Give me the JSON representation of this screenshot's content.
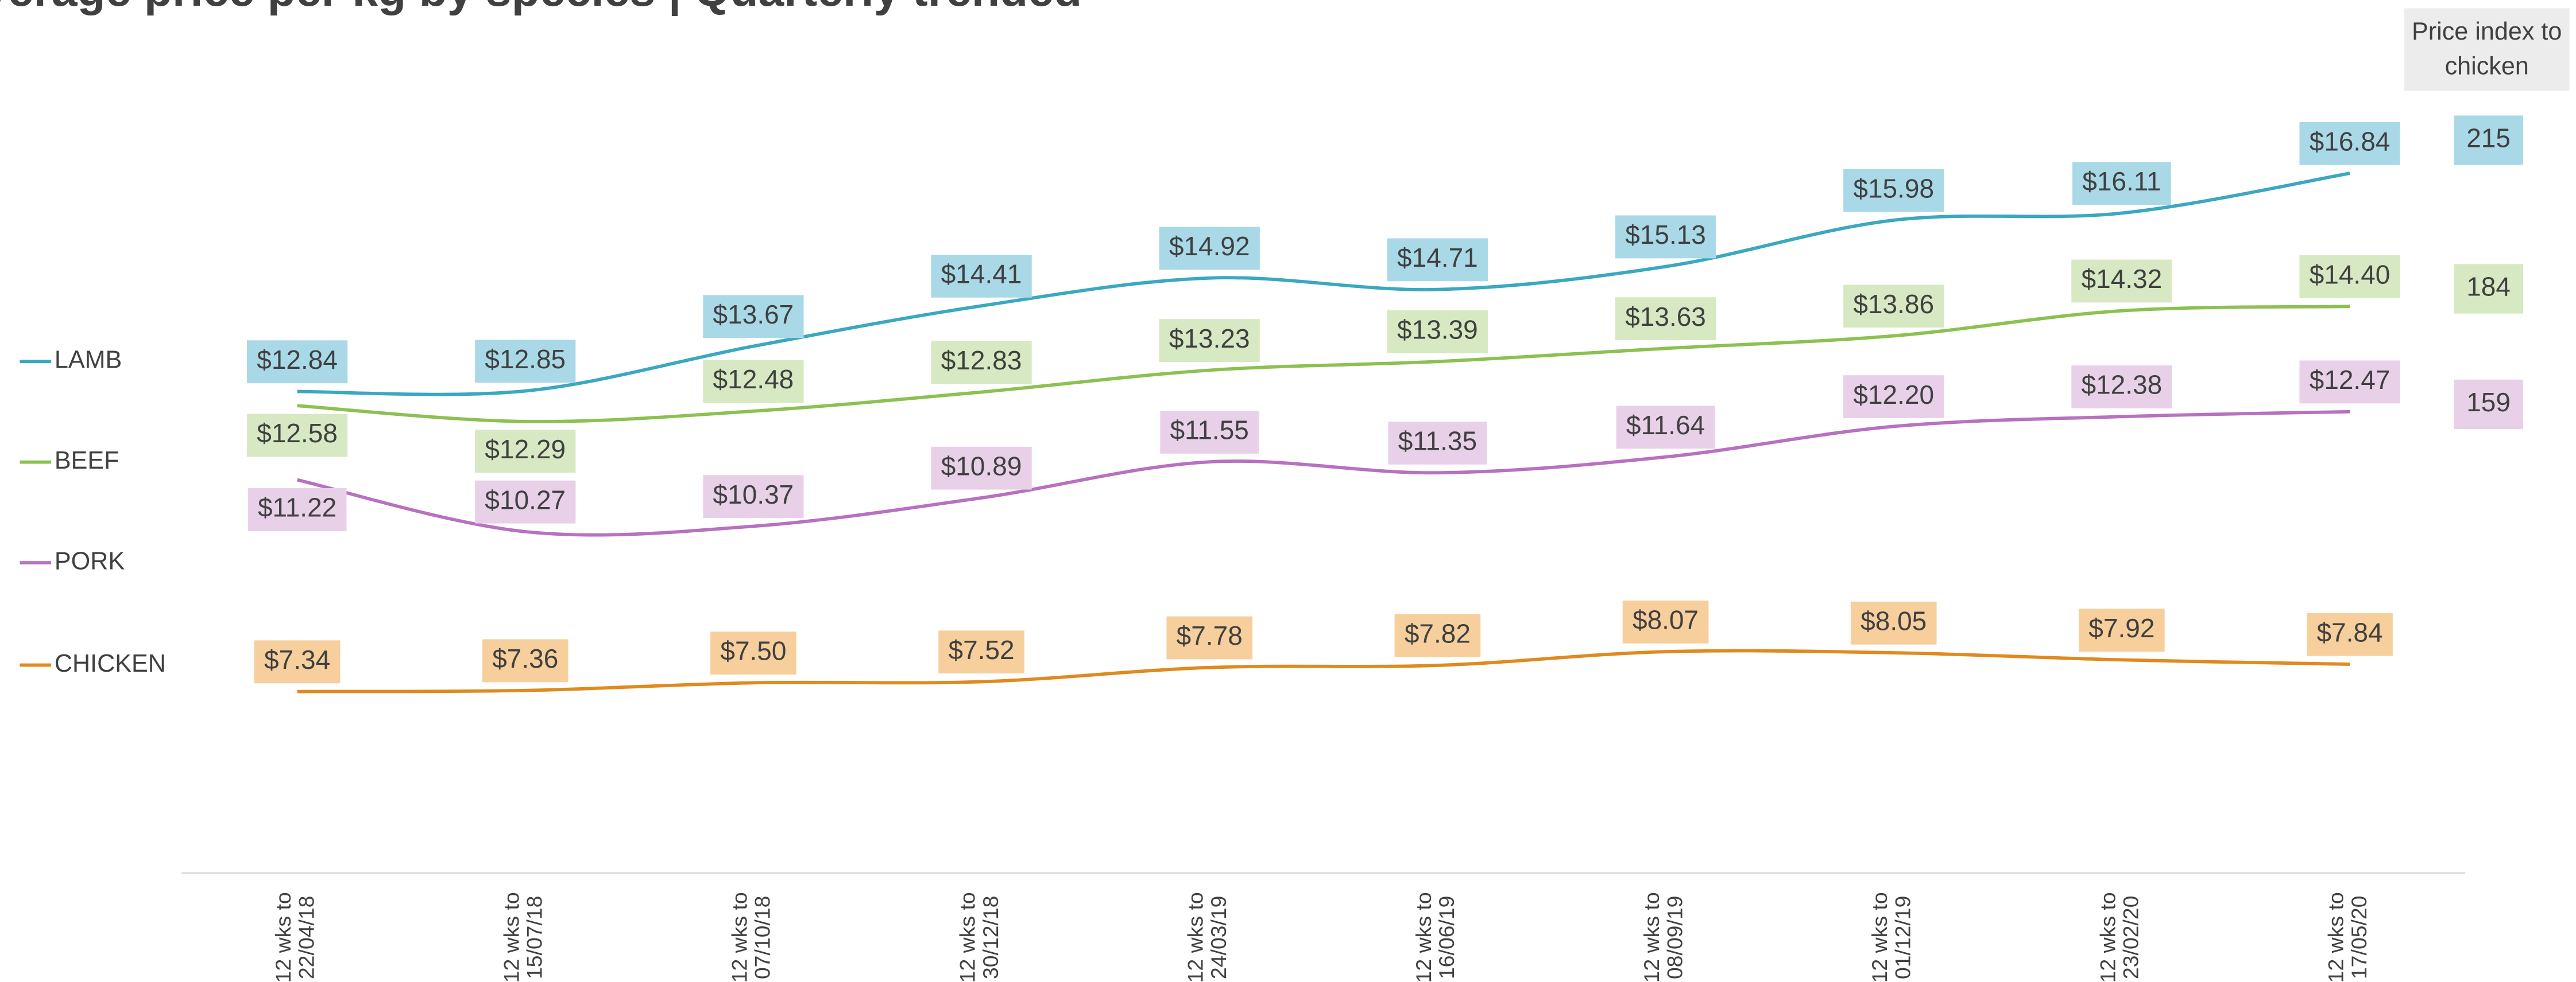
{
  "chart_data": {
    "type": "line",
    "title": "Average price per kg by species | Quarterly trended",
    "index_header": "Price index to chicken",
    "categories": [
      "12 wks to 22/04/18",
      "12 wks to 15/07/18",
      "12 wks to 07/10/18",
      "12 wks to 30/12/18",
      "12 wks to 24/03/19",
      "12 wks to 16/06/19",
      "12 wks to 08/09/19",
      "12 wks to 01/12/19",
      "12 wks to 23/02/20",
      "12 wks to 17/05/20"
    ],
    "series": [
      {
        "name": "LAMB",
        "color": "#3aa8c1",
        "label_color": "#a9d9e7",
        "price_index": 215,
        "values": [
          12.84,
          12.85,
          13.67,
          14.41,
          14.92,
          14.71,
          15.13,
          15.98,
          16.11,
          16.84
        ],
        "value_labels": [
          "$12.84",
          "$12.85",
          "$13.67",
          "$14.41",
          "$14.92",
          "$14.71",
          "$15.13",
          "$15.98",
          "$16.11",
          "$16.84"
        ]
      },
      {
        "name": "BEEF",
        "color": "#8cc152",
        "label_color": "#d6e9c2",
        "price_index": 184,
        "values": [
          12.58,
          12.29,
          12.48,
          12.83,
          13.23,
          13.39,
          13.63,
          13.86,
          14.32,
          14.4
        ],
        "value_labels": [
          "$12.58",
          "$12.29",
          "$12.48",
          "$12.83",
          "$13.23",
          "$13.39",
          "$13.63",
          "$13.86",
          "$14.32",
          "$14.40"
        ]
      },
      {
        "name": "PORK",
        "color": "#b870c0",
        "label_color": "#e8d1e8",
        "price_index": 159,
        "values": [
          11.22,
          10.27,
          10.37,
          10.89,
          11.55,
          11.35,
          11.64,
          12.2,
          12.38,
          12.47
        ],
        "value_labels": [
          "$11.22",
          "$10.27",
          "$10.37",
          "$10.89",
          "$11.55",
          "$11.35",
          "$11.64",
          "$12.20",
          "$12.38",
          "$12.47"
        ]
      },
      {
        "name": "CHICKEN",
        "color": "#e08a1e",
        "label_color": "#f6cf9c",
        "values": [
          7.34,
          7.36,
          7.5,
          7.52,
          7.78,
          7.82,
          8.07,
          8.05,
          7.92,
          7.84
        ],
        "value_labels": [
          "$7.34",
          "$7.36",
          "$7.50",
          "$7.52",
          "$7.78",
          "$7.82",
          "$8.07",
          "$8.05",
          "$7.92",
          "$7.84"
        ]
      }
    ]
  }
}
